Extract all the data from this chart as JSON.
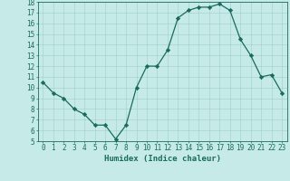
{
  "x": [
    0,
    1,
    2,
    3,
    4,
    5,
    6,
    7,
    8,
    9,
    10,
    11,
    12,
    13,
    14,
    15,
    16,
    17,
    18,
    19,
    20,
    21,
    22,
    23
  ],
  "y": [
    10.5,
    9.5,
    9.0,
    8.0,
    7.5,
    6.5,
    6.5,
    5.2,
    6.5,
    10.0,
    12.0,
    12.0,
    13.5,
    16.5,
    17.2,
    17.5,
    17.5,
    17.8,
    17.2,
    14.5,
    13.0,
    11.0,
    11.2,
    9.5
  ],
  "line_color": "#1a6b5e",
  "marker": "D",
  "markersize": 2.2,
  "bg_color": "#c5eae8",
  "grid_color": "#9fcfca",
  "xlabel": "Humidex (Indice chaleur)",
  "ylim": [
    5,
    18
  ],
  "xlim": [
    -0.5,
    23.5
  ],
  "yticks": [
    5,
    6,
    7,
    8,
    9,
    10,
    11,
    12,
    13,
    14,
    15,
    16,
    17,
    18
  ],
  "xticks": [
    0,
    1,
    2,
    3,
    4,
    5,
    6,
    7,
    8,
    9,
    10,
    11,
    12,
    13,
    14,
    15,
    16,
    17,
    18,
    19,
    20,
    21,
    22,
    23
  ],
  "tick_color": "#1a6b5e",
  "axis_color": "#1a6b5e",
  "label_fontsize": 6.5,
  "tick_fontsize": 5.5
}
